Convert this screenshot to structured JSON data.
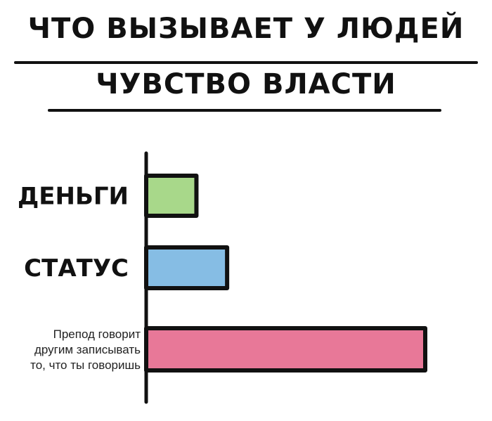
{
  "chart_data": {
    "type": "bar",
    "orientation": "horizontal",
    "title": [
      "ЧТО ВЫЗЫВАЕТ У ЛЮДЕЙ",
      "ЧУВСТВО ВЛАСТИ"
    ],
    "categories": [
      [
        "ДЕНЬГИ"
      ],
      [
        "СТАТУС"
      ],
      [
        "Препод говорит",
        "другим записывать",
        "то, что ты говоришь"
      ]
    ],
    "values": [
      18,
      29,
      100
    ],
    "colors": [
      "#a8d88a",
      "#86bde4",
      "#e87898"
    ],
    "xlabel": "",
    "ylabel": "",
    "xlim": [
      0,
      105
    ],
    "grid": false,
    "axis_ticks": false
  }
}
